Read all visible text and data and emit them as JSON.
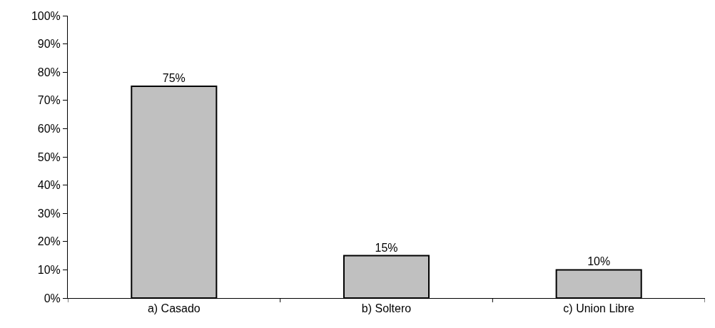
{
  "chart_data": {
    "type": "bar",
    "categories": [
      "a) Casado",
      "b) Soltero",
      "c) Union Libre"
    ],
    "values": [
      75,
      15,
      10
    ],
    "value_labels": [
      "75%",
      "15%",
      "10%"
    ],
    "color": "#c0c0c0",
    "ylim": [
      0,
      100
    ],
    "yticks": [
      {
        "value": 0,
        "label": "0%"
      },
      {
        "value": 10,
        "label": "10%"
      },
      {
        "value": 20,
        "label": "20%"
      },
      {
        "value": 30,
        "label": "30%"
      },
      {
        "value": 40,
        "label": "40%"
      },
      {
        "value": 50,
        "label": "50%"
      },
      {
        "value": 60,
        "label": "60%"
      },
      {
        "value": 70,
        "label": "70%"
      },
      {
        "value": 80,
        "label": "80%"
      },
      {
        "value": 90,
        "label": "90%"
      },
      {
        "value": 100,
        "label": "100%"
      }
    ],
    "grid": false
  }
}
